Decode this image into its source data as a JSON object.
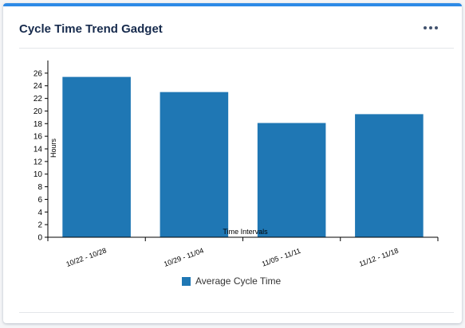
{
  "gadget": {
    "title": "Cycle Time Trend Gadget"
  },
  "colors": {
    "accent": "#2d8ae6",
    "bar": "#1f77b4"
  },
  "icons": {
    "menu": "more-horizontal-icon"
  },
  "chart_data": {
    "type": "bar",
    "categories": [
      "10/22 - 10/28",
      "10/29 - 11/04",
      "11/05 - 11/11",
      "11/12 - 11/18"
    ],
    "series": [
      {
        "name": "Average Cycle Time",
        "values": [
          25.4,
          23.0,
          18.1,
          19.5
        ]
      }
    ],
    "xlabel": "Time Intervals",
    "ylabel": "Hours",
    "ylim": [
      0,
      28
    ],
    "yticks": [
      0,
      2,
      4,
      6,
      8,
      10,
      12,
      14,
      16,
      18,
      20,
      22,
      24,
      26
    ],
    "grid": false,
    "legend": "bottom"
  }
}
